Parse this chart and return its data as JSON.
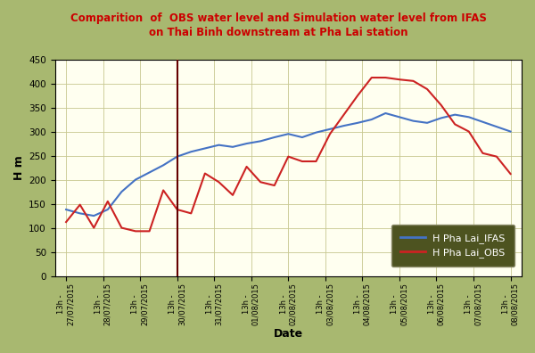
{
  "title_line1": "Comparition  of  OBS water level and Simulation water level from IFAS",
  "title_line2": "on Thai Binh downstream at Pha Lai station",
  "title_color": "#cc0000",
  "ylabel": "H m",
  "xlabel": "Date",
  "background_outer": "#a8b870",
  "background_plot": "#fffff0",
  "ylim": [
    0,
    450
  ],
  "yticks": [
    0,
    50,
    100,
    150,
    200,
    250,
    300,
    350,
    400,
    450
  ],
  "x_labels": [
    "13h -\n27/07/2015",
    "13h -\n28/07/2015",
    "13h -\n29/07/2015",
    "13h -\n30/07/2015",
    "13h -\n31/07/2015",
    "13h -\n01/08/2015",
    "13h -\n02/08/2015",
    "13h -\n03/08/2015",
    "13h -\n04/08/2015",
    "13h -\n05/08/2015",
    "13h -\n06/08/2015",
    "13h -\n07/08/2015",
    "13h -\n08/08/2015"
  ],
  "vline_x": 3,
  "vline_color": "#660000",
  "ifas_color": "#4472c4",
  "obs_color": "#cc2222",
  "legend_bg": "#4d5320",
  "legend_label_ifas": "H Pha Lai_IFAS",
  "legend_label_obs": "H Pha Lai_OBS",
  "ifas_data": [
    138,
    130,
    125,
    138,
    175,
    200,
    215,
    230,
    248,
    258,
    265,
    272,
    268,
    275,
    280,
    288,
    295,
    288,
    298,
    305,
    312,
    318,
    325,
    338,
    330,
    322,
    318,
    328,
    335,
    330,
    320,
    310,
    300
  ],
  "obs_data": [
    112,
    148,
    100,
    155,
    100,
    93,
    93,
    178,
    138,
    130,
    213,
    195,
    168,
    227,
    195,
    188,
    248,
    238,
    238,
    295,
    335,
    375,
    412,
    412,
    408,
    405,
    388,
    355,
    315,
    300,
    255,
    248,
    212
  ]
}
